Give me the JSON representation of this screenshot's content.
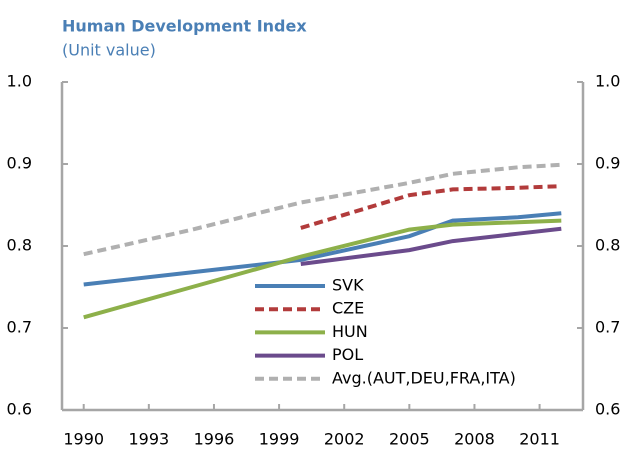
{
  "chart_data": {
    "type": "line",
    "title": "Human Development Index",
    "subtitle": "(Unit value)",
    "x": [
      1990,
      1995,
      2000,
      2005,
      2007,
      2010,
      2012
    ],
    "series": [
      {
        "name": "SVK",
        "color": "#4a7fb5",
        "dashed": false,
        "values": [
          0.753,
          0.768,
          0.783,
          0.812,
          0.831,
          0.835,
          0.84
        ]
      },
      {
        "name": "CZE",
        "color": "#b23b3b",
        "dashed": true,
        "values": [
          null,
          null,
          0.822,
          0.862,
          0.869,
          0.871,
          0.873
        ]
      },
      {
        "name": "HUN",
        "color": "#8db04a",
        "dashed": false,
        "values": [
          0.713,
          0.75,
          0.787,
          0.82,
          0.826,
          0.829,
          0.831
        ]
      },
      {
        "name": "POL",
        "color": "#6b4b8c",
        "dashed": false,
        "values": [
          null,
          null,
          0.778,
          0.795,
          0.806,
          0.815,
          0.821
        ]
      },
      {
        "name": "Avg.(AUT,DEU,FRA,ITA)",
        "color": "#b0b0b0",
        "dashed": true,
        "values": [
          0.79,
          0.82,
          0.853,
          0.877,
          0.888,
          0.896,
          0.899
        ]
      }
    ],
    "xlim": [
      1989,
      2013
    ],
    "xticks": [
      1990,
      1993,
      1996,
      1999,
      2002,
      2005,
      2008,
      2011
    ],
    "ylim": [
      0.6,
      1.0
    ],
    "yticks": [
      0.6,
      0.7,
      0.8,
      0.9,
      {
        "value": 1.0,
        "label": "1.0"
      }
    ],
    "y2lim": [
      0.6,
      1.0
    ],
    "y2ticks": [
      0.6,
      0.7,
      0.8,
      0.9,
      {
        "value": 1.0,
        "label": "1.0"
      }
    ],
    "grid": false
  }
}
